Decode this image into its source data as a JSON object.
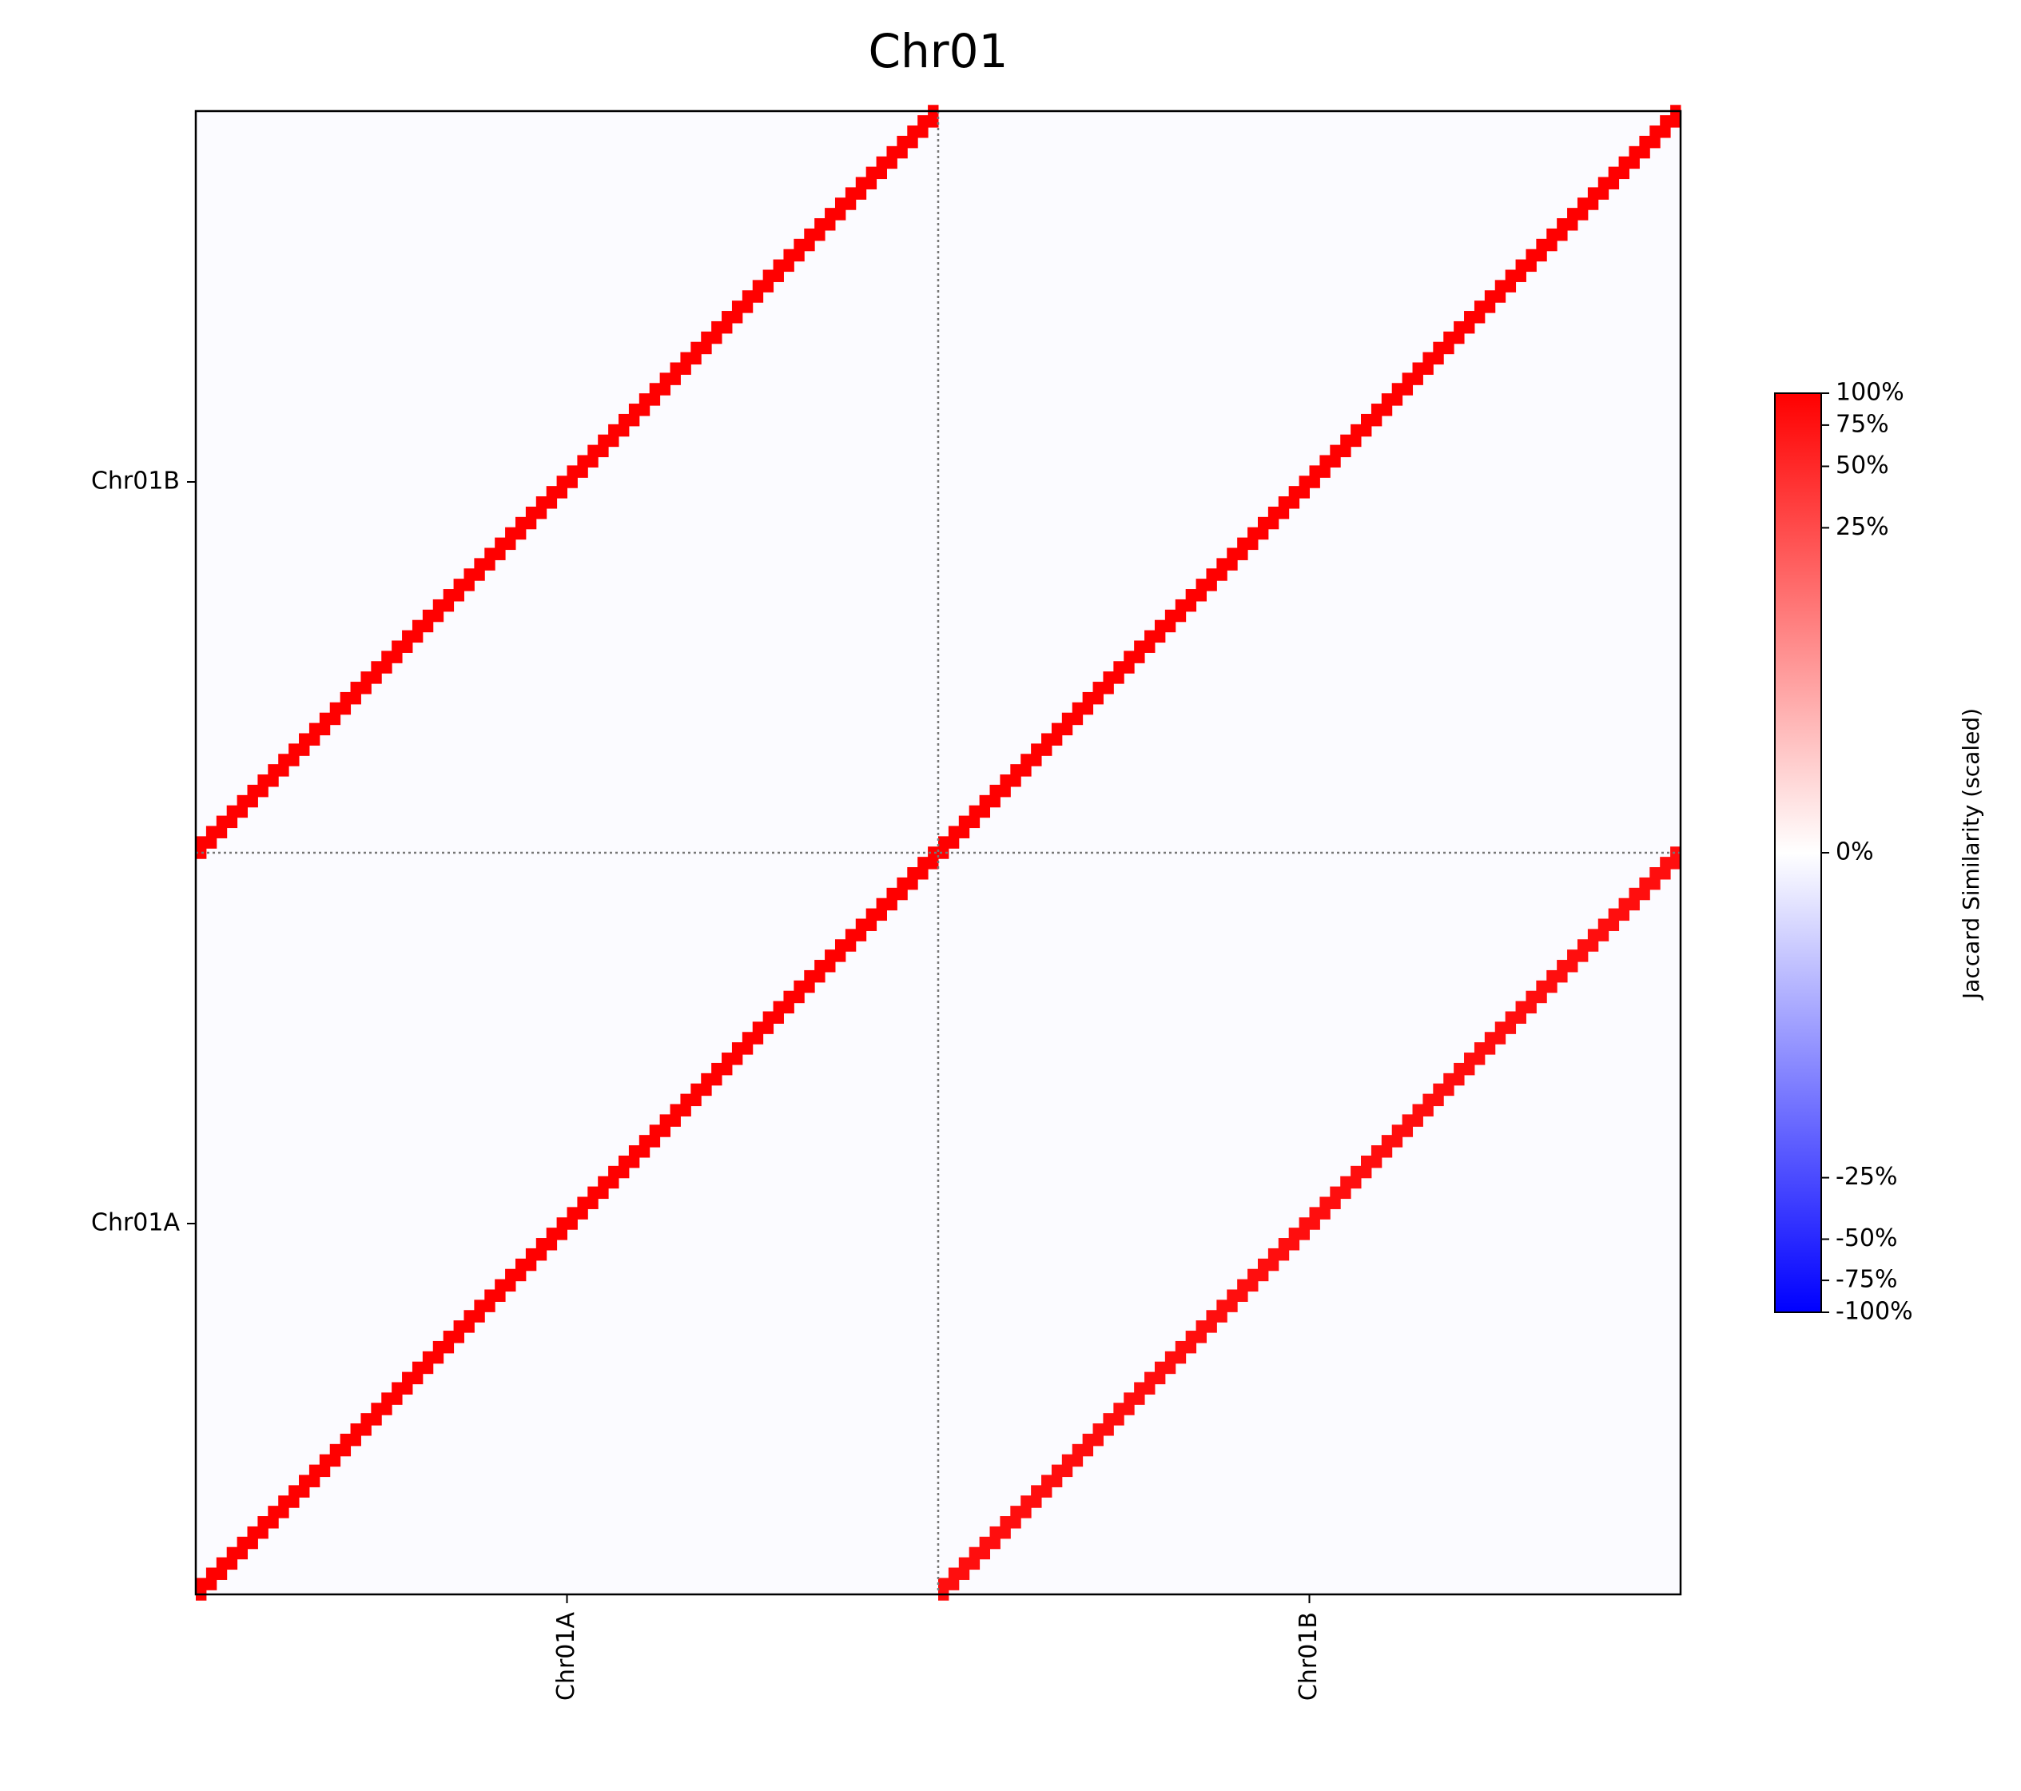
{
  "chart_data": {
    "type": "heatmap",
    "title": "Chr01",
    "x_categories": [
      "Chr01A",
      "Chr01B"
    ],
    "y_categories": [
      "Chr01A",
      "Chr01B"
    ],
    "values": [
      [
        100,
        80
      ],
      [
        100,
        100
      ]
    ],
    "cmap": [
      "#0000ff",
      "#ffffff",
      "#ff0000"
    ],
    "colorbar_label": "Jaccard Similarity (scaled)",
    "colorbar_lim": [
      -100,
      100
    ],
    "colorbar_power": 0.25,
    "colorbar_ticks": [
      {
        "value": 100,
        "label": "100%"
      },
      {
        "value": 75,
        "label": "75%"
      },
      {
        "value": 50,
        "label": "50%"
      },
      {
        "value": 25,
        "label": "25%"
      },
      {
        "value": 0,
        "label": "0%"
      },
      {
        "value": -25,
        "label": "-25%"
      },
      {
        "value": -50,
        "label": "-50%"
      },
      {
        "value": -75,
        "label": "-75%"
      },
      {
        "value": -100,
        "label": "-100%"
      }
    ]
  }
}
